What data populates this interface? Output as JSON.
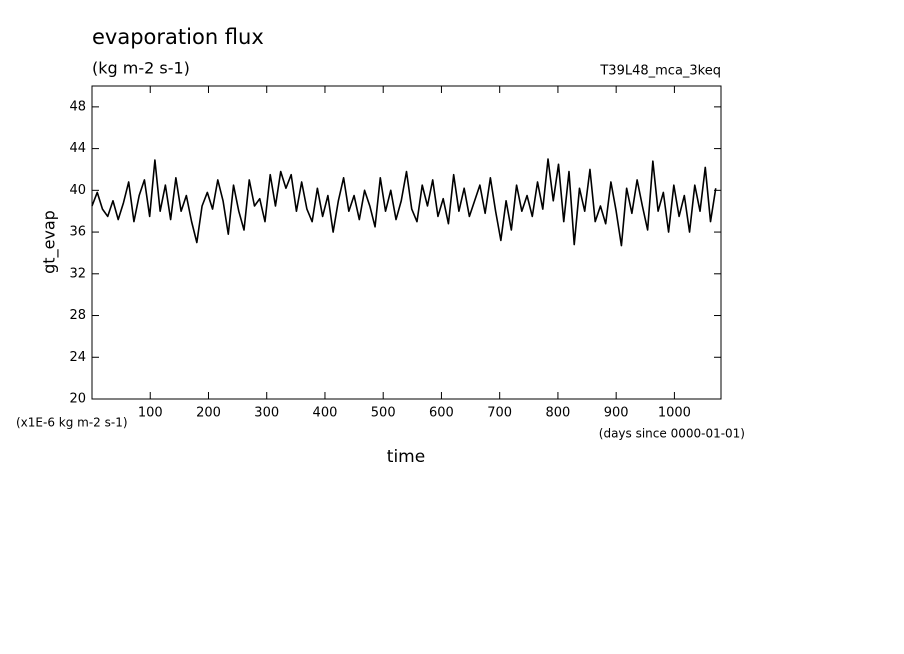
{
  "chart_data": {
    "type": "line",
    "title": "evaporation flux",
    "subtitle": "(kg m-2 s-1)",
    "annotation": "T39L48_mca_3keq",
    "ylabel": "gt_evap",
    "yunit": "(x1E-6 kg m-2 s-1)",
    "xlabel": "time",
    "xunit": "(days since 0000-01-01)",
    "xlim": [
      0,
      1080
    ],
    "ylim": [
      20,
      50
    ],
    "xticks": [
      100,
      200,
      300,
      400,
      500,
      600,
      700,
      800,
      900,
      1000
    ],
    "yticks": [
      20,
      24,
      28,
      32,
      36,
      40,
      44,
      48
    ],
    "x": [
      0,
      9,
      18,
      27,
      36,
      45,
      54,
      63,
      72,
      81,
      90,
      99,
      108,
      117,
      126,
      135,
      144,
      153,
      162,
      171,
      180,
      189,
      198,
      207,
      216,
      225,
      234,
      243,
      252,
      261,
      270,
      279,
      288,
      297,
      306,
      315,
      324,
      333,
      342,
      351,
      360,
      369,
      378,
      387,
      396,
      405,
      414,
      423,
      432,
      441,
      450,
      459,
      468,
      477,
      486,
      495,
      504,
      513,
      522,
      531,
      540,
      549,
      558,
      567,
      576,
      585,
      594,
      603,
      612,
      621,
      630,
      639,
      648,
      657,
      666,
      675,
      684,
      693,
      702,
      711,
      720,
      729,
      738,
      747,
      756,
      765,
      774,
      783,
      792,
      801,
      810,
      819,
      828,
      837,
      846,
      855,
      864,
      873,
      882,
      891,
      900,
      909,
      918,
      927,
      936,
      945,
      954,
      963,
      972,
      981,
      990,
      999,
      1008,
      1017,
      1026,
      1035,
      1044,
      1053,
      1062,
      1071
    ],
    "series": [
      {
        "color": "#000000",
        "values": [
          38.5,
          39.8,
          38.2,
          37.5,
          39.0,
          37.2,
          38.8,
          40.8,
          37.0,
          39.5,
          41.0,
          37.5,
          42.9,
          38.0,
          40.5,
          37.2,
          41.2,
          38.0,
          39.5,
          37.0,
          35.0,
          38.5,
          39.8,
          38.2,
          41.0,
          39.0,
          35.8,
          40.5,
          38.0,
          36.2,
          41.0,
          38.5,
          39.2,
          37.0,
          41.5,
          38.5,
          41.8,
          40.2,
          41.5,
          38.0,
          40.8,
          38.2,
          37.0,
          40.2,
          37.5,
          39.5,
          36.0,
          39.0,
          41.2,
          38.0,
          39.5,
          37.2,
          40.0,
          38.5,
          36.5,
          41.2,
          38.0,
          40.0,
          37.2,
          39.0,
          41.8,
          38.2,
          37.0,
          40.5,
          38.5,
          41.0,
          37.5,
          39.2,
          36.8,
          41.5,
          38.0,
          40.2,
          37.5,
          39.0,
          40.5,
          37.8,
          41.2,
          38.0,
          35.2,
          39.0,
          36.2,
          40.5,
          38.0,
          39.5,
          37.5,
          40.8,
          38.2,
          43.0,
          39.0,
          42.5,
          37.0,
          41.8,
          34.8,
          40.2,
          38.0,
          42.0,
          37.0,
          38.5,
          36.8,
          40.8,
          38.0,
          34.7,
          40.2,
          37.8,
          41.0,
          38.5,
          36.2,
          42.8,
          38.0,
          39.8,
          36.0,
          40.5,
          37.5,
          39.5,
          36.0,
          40.5,
          38.0,
          42.2,
          37.0,
          40.2
        ]
      }
    ]
  }
}
